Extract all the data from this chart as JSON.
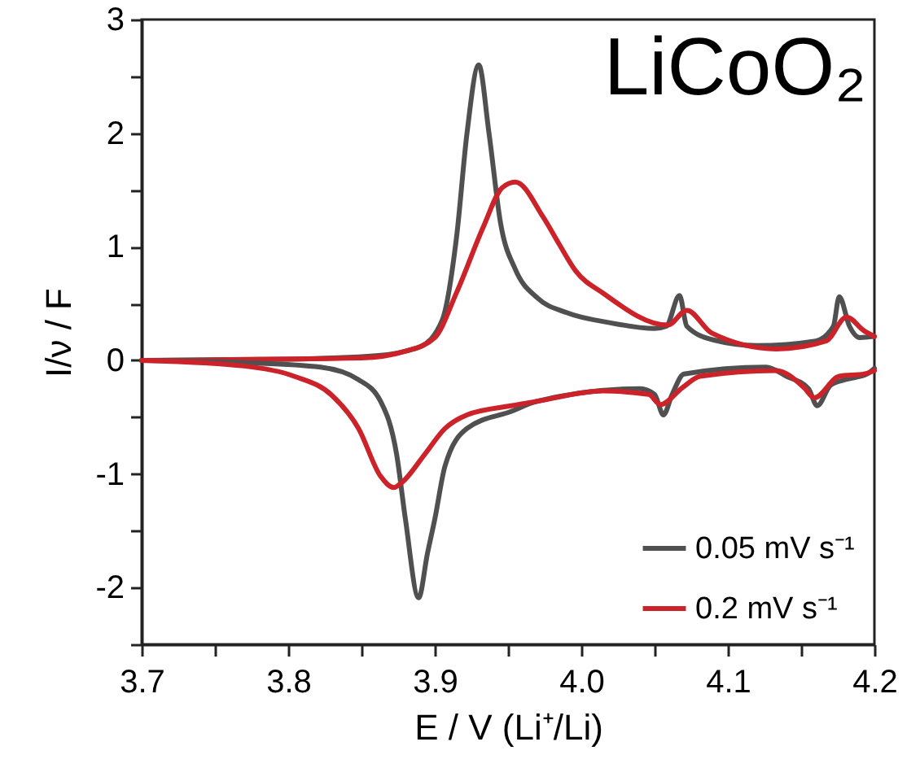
{
  "chart_data": {
    "type": "line",
    "xlabel": "E / V (Li⁺/Li)",
    "ylabel": "I/ν / F",
    "annotations": [
      "LiCoO₂"
    ],
    "xlim": [
      3.7,
      4.2
    ],
    "ylim": [
      -2.5,
      3
    ],
    "xticks": [
      3.7,
      {
        "value": 3.75,
        "label": null
      },
      3.8,
      {
        "value": 3.85,
        "label": null
      },
      3.9,
      {
        "value": 3.95,
        "label": null
      },
      {
        "value": 4,
        "label": "4.0"
      },
      {
        "value": 4.05,
        "label": null
      },
      4.1,
      {
        "value": 4.15,
        "label": null
      },
      4.2
    ],
    "yticks": [
      {
        "value": -2.5,
        "label": null
      },
      -2,
      {
        "value": -1.5,
        "label": null
      },
      -1,
      {
        "value": -0.5,
        "label": null
      },
      0,
      {
        "value": 0.5,
        "label": null
      },
      1,
      {
        "value": 1.5,
        "label": null
      },
      2,
      {
        "value": 2.5,
        "label": null
      },
      3
    ],
    "legend": "bottom right",
    "grid": false,
    "marker": "none",
    "line_style": "solid",
    "series": [
      {
        "name": "0.05 mV s⁻¹",
        "color": "#505050",
        "x": [
          3.7,
          3.8,
          3.86,
          3.89,
          3.905,
          3.915,
          3.922,
          3.93,
          3.937,
          3.945,
          3.955,
          3.97,
          3.99,
          4.02,
          4.05,
          4.058,
          4.067,
          4.072,
          4.09,
          4.12,
          4.16,
          4.172,
          4.176,
          4.183,
          4.19,
          4.2
        ],
        "values": [
          0,
          0.01,
          0.04,
          0.12,
          0.35,
          1.1,
          2,
          2.6,
          2,
          1.2,
          0.8,
          0.55,
          0.42,
          0.33,
          0.28,
          0.3,
          0.57,
          0.3,
          0.18,
          0.13,
          0.17,
          0.3,
          0.56,
          0.3,
          0.2,
          0.21
        ]
      },
      {
        "color": "#505050",
        "x": [
          3.7,
          3.77,
          3.822,
          3.848,
          3.863,
          3.874,
          3.88,
          3.889,
          3.895,
          3.9,
          3.907,
          3.922,
          3.952,
          3.97,
          4.04,
          4.05,
          4.056,
          4.062,
          4.07,
          4.126,
          4.14,
          4.155,
          4.161,
          4.17,
          4.18,
          4.195,
          4.2
        ],
        "values": [
          0,
          -0.02,
          -0.06,
          -0.17,
          -0.36,
          -0.83,
          -1.4,
          -2.09,
          -1.7,
          -1.4,
          -0.93,
          -0.6,
          -0.45,
          -0.36,
          -0.25,
          -0.3,
          -0.48,
          -0.3,
          -0.12,
          -0.06,
          -0.14,
          -0.25,
          -0.4,
          -0.22,
          -0.17,
          -0.12,
          -0.07
        ]
      },
      {
        "name": "0.2 mV s⁻¹",
        "color": "#cc2229",
        "x": [
          3.7,
          3.85,
          3.88,
          3.9,
          3.915,
          3.933,
          3.946,
          3.955,
          3.974,
          3.985,
          3.996,
          4.015,
          4.059,
          4.072,
          4.089,
          4.133,
          4.167,
          4.181,
          4.193,
          4.2
        ],
        "values": [
          0,
          0.02,
          0.08,
          0.2,
          0.6,
          1.17,
          1.52,
          1.57,
          1.26,
          1.02,
          0.79,
          0.59,
          0.31,
          0.44,
          0.24,
          0.1,
          0.17,
          0.38,
          0.26,
          0.21
        ]
      },
      {
        "color": "#cc2229",
        "x": [
          3.7,
          3.77,
          3.804,
          3.83,
          3.848,
          3.863,
          3.872,
          3.878,
          3.893,
          3.907,
          3.922,
          3.952,
          3.97,
          4.015,
          4.046,
          4.054,
          4.069,
          4.081,
          4.133,
          4.152,
          4.159,
          4.176,
          4.193,
          4.2
        ],
        "values": [
          0,
          -0.05,
          -0.14,
          -0.31,
          -0.6,
          -1.02,
          -1.12,
          -1.07,
          -0.83,
          -0.6,
          -0.48,
          -0.4,
          -0.36,
          -0.27,
          -0.3,
          -0.39,
          -0.24,
          -0.14,
          -0.09,
          -0.24,
          -0.33,
          -0.14,
          -0.12,
          -0.09
        ]
      }
    ]
  }
}
